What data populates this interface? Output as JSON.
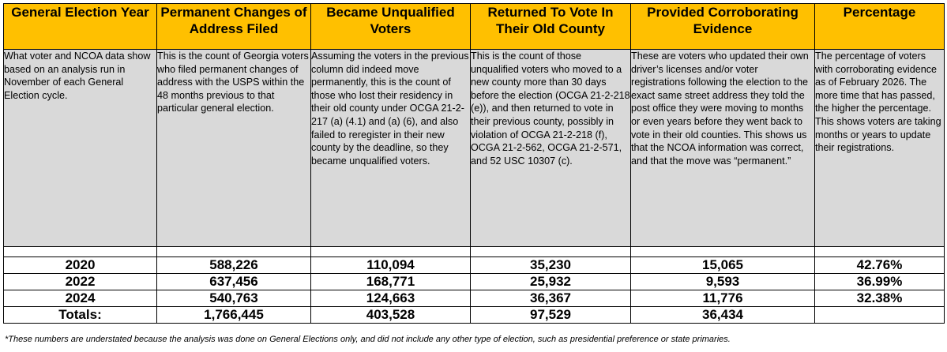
{
  "headers": [
    "General Election Year",
    "Permanent Changes of Address Filed",
    "Became Unqualified Voters",
    "Returned To Vote In Their Old County",
    "Provided Corroborating Evidence",
    "Percentage"
  ],
  "descriptions": [
    "What voter and NCOA data show based on an analysis run in November of each General Election cycle.",
    "This is the count of Georgia voters who filed permanent changes of address with the USPS within the 48 months previous to that particular general election.",
    "Assuming the voters in the previous column did indeed move permanently, this is the count of those who lost their residency in their old county under OCGA 21-2-217 (a) (4.1) and (a) (6), and also failed to reregister in their new county by the deadline, so they became unqualified voters.",
    "This is the count of those unqualified voters who moved to a new county more than 30 days before the election (OCGA 21-2-218 (e)), and then returned to vote in their previous county, possibly in violation of OCGA 21-2-218 (f), OCGA 21-2-562, OCGA 21-2-571, and 52 USC 10307 (c).",
    "These are voters who updated their own driver’s licenses and/or voter registrations following the election to the exact same street address they told the post office they were moving to months or even years before they went back to vote in their old counties. This shows us that the NCOA information was correct, and that the move was “permanent.”",
    "The percentage of voters with corroborating evidence as of February 2026. The more time that has passed, the higher the percentage. This shows voters are taking months or years to update their registrations."
  ],
  "rows": [
    {
      "year": "2020",
      "coa": "588,226",
      "unqualified": "110,094",
      "returned": "35,230",
      "corroborated": "15,065",
      "percentage": "42.76%"
    },
    {
      "year": "2022",
      "coa": "637,456",
      "unqualified": "168,771",
      "returned": "25,932",
      "corroborated": "9,593",
      "percentage": "36.99%"
    },
    {
      "year": "2024",
      "coa": "540,763",
      "unqualified": "124,663",
      "returned": "36,367",
      "corroborated": "11,776",
      "percentage": "32.38%"
    }
  ],
  "totals": {
    "label": "Totals:",
    "coa": "1,766,445",
    "unqualified": "403,528",
    "returned": "97,529",
    "corroborated": "36,434",
    "percentage": ""
  },
  "footnote": "*These numbers are understated because the analysis was done on General Elections only, and did not include any other type of election, such as presidential preference or state primaries.",
  "colors": {
    "header_bg": "#ffc000",
    "description_bg": "#d9d9d9",
    "border": "#000000"
  }
}
